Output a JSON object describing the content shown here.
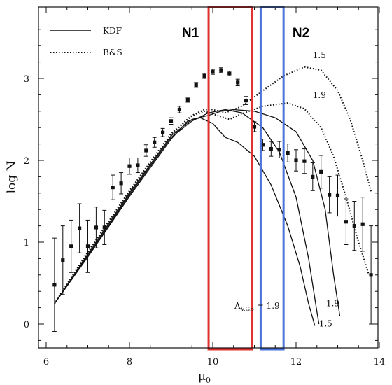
{
  "chart_data": {
    "type": "scatter",
    "xlabel": "μ",
    "xlabel_sub": "0",
    "ylabel": "log N",
    "xlim": [
      6,
      14
    ],
    "ylim": [
      -0.3,
      3.9
    ],
    "x_ticks": [
      6,
      8,
      10,
      12,
      14
    ],
    "y_ticks": [
      0,
      1,
      2,
      3
    ],
    "legend": [
      {
        "label": "KDF",
        "style": "solid"
      },
      {
        "label": "B&S",
        "style": "dotted"
      }
    ],
    "observed": [
      {
        "x": 6.2,
        "y": 0.48,
        "err": 0.57
      },
      {
        "x": 6.4,
        "y": 0.78,
        "err": 0.42
      },
      {
        "x": 6.6,
        "y": 0.95,
        "err": 0.32
      },
      {
        "x": 6.8,
        "y": 1.17,
        "err": 0.3
      },
      {
        "x": 7.0,
        "y": 0.95,
        "err": 0.32
      },
      {
        "x": 7.2,
        "y": 1.18,
        "err": 0.25
      },
      {
        "x": 7.4,
        "y": 1.18,
        "err": 0.21
      },
      {
        "x": 7.6,
        "y": 1.67,
        "err": 0.15
      },
      {
        "x": 7.8,
        "y": 1.72,
        "err": 0.13
      },
      {
        "x": 8.0,
        "y": 1.93,
        "err": 0.1
      },
      {
        "x": 8.2,
        "y": 1.94,
        "err": 0.09
      },
      {
        "x": 8.4,
        "y": 2.12,
        "err": 0.07
      },
      {
        "x": 8.6,
        "y": 2.22,
        "err": 0.06
      },
      {
        "x": 8.8,
        "y": 2.34,
        "err": 0.05
      },
      {
        "x": 9.0,
        "y": 2.48,
        "err": 0.04
      },
      {
        "x": 9.2,
        "y": 2.62,
        "err": 0.04
      },
      {
        "x": 9.4,
        "y": 2.74,
        "err": 0.03
      },
      {
        "x": 9.6,
        "y": 2.92,
        "err": 0.03
      },
      {
        "x": 9.8,
        "y": 3.03,
        "err": 0.03
      },
      {
        "x": 10.0,
        "y": 3.08,
        "err": 0.03
      },
      {
        "x": 10.2,
        "y": 3.1,
        "err": 0.03
      },
      {
        "x": 10.4,
        "y": 3.06,
        "err": 0.03
      },
      {
        "x": 10.6,
        "y": 2.95,
        "err": 0.04
      },
      {
        "x": 10.8,
        "y": 2.73,
        "err": 0.05
      },
      {
        "x": 11.0,
        "y": 2.41,
        "err": 0.06
      },
      {
        "x": 11.2,
        "y": 2.19,
        "err": 0.07
      },
      {
        "x": 11.4,
        "y": 2.14,
        "err": 0.09
      },
      {
        "x": 11.6,
        "y": 2.13,
        "err": 0.1
      },
      {
        "x": 11.8,
        "y": 2.09,
        "err": 0.11
      },
      {
        "x": 12.0,
        "y": 2.0,
        "err": 0.13
      },
      {
        "x": 12.2,
        "y": 1.99,
        "err": 0.15
      },
      {
        "x": 12.4,
        "y": 1.8,
        "err": 0.17
      },
      {
        "x": 12.6,
        "y": 1.86,
        "err": 0.2
      },
      {
        "x": 12.8,
        "y": 1.58,
        "err": 0.22
      },
      {
        "x": 13.0,
        "y": 1.57,
        "err": 0.25
      },
      {
        "x": 13.2,
        "y": 1.25,
        "err": 0.28
      },
      {
        "x": 13.4,
        "y": 1.2,
        "err": 0.3
      },
      {
        "x": 13.6,
        "y": 1.22,
        "err": 0.33
      },
      {
        "x": 13.8,
        "y": 0.6,
        "err": 0.6
      }
    ],
    "kdf_curves": [
      {
        "label": "",
        "points": [
          [
            6.2,
            0.25
          ],
          [
            7,
            0.85
          ],
          [
            8,
            1.6
          ],
          [
            9,
            2.3
          ],
          [
            9.5,
            2.5
          ],
          [
            9.9,
            2.55
          ],
          [
            10.2,
            2.6
          ],
          [
            10.5,
            2.62
          ],
          [
            11,
            2.6
          ],
          [
            11.5,
            2.52
          ],
          [
            12,
            2.35
          ],
          [
            12.4,
            2.0
          ],
          [
            12.7,
            1.4
          ],
          [
            12.9,
            0.6
          ],
          [
            13.05,
            0.1
          ]
        ]
      },
      {
        "label": "1.5",
        "points": [
          [
            6.2,
            0.25
          ],
          [
            7,
            0.83
          ],
          [
            8,
            1.58
          ],
          [
            9,
            2.28
          ],
          [
            9.5,
            2.48
          ],
          [
            9.9,
            2.58
          ],
          [
            10.3,
            2.62
          ],
          [
            10.7,
            2.58
          ],
          [
            11.2,
            2.4
          ],
          [
            11.6,
            2.1
          ],
          [
            12.0,
            1.55
          ],
          [
            12.3,
            0.8
          ],
          [
            12.5,
            0.15
          ],
          [
            12.55,
            0.0
          ]
        ]
      },
      {
        "label": "1.9",
        "points": [
          [
            6.2,
            0.25
          ],
          [
            7,
            0.82
          ],
          [
            8,
            1.56
          ],
          [
            9,
            2.26
          ],
          [
            9.4,
            2.48
          ],
          [
            9.7,
            2.52
          ],
          [
            10.0,
            2.45
          ],
          [
            10.3,
            2.28
          ],
          [
            10.6,
            2.22
          ],
          [
            11.0,
            2.05
          ],
          [
            11.4,
            1.7
          ],
          [
            11.8,
            1.2
          ],
          [
            12.1,
            0.7
          ],
          [
            12.3,
            0.25
          ],
          [
            12.45,
            -0.02
          ]
        ]
      }
    ],
    "bs_curves": [
      {
        "label": "1.5",
        "points": [
          [
            6.2,
            0.25
          ],
          [
            7,
            0.88
          ],
          [
            8,
            1.63
          ],
          [
            9,
            2.33
          ],
          [
            9.5,
            2.55
          ],
          [
            9.8,
            2.62
          ],
          [
            10.0,
            2.62
          ],
          [
            10.3,
            2.58
          ],
          [
            10.7,
            2.66
          ],
          [
            11.2,
            2.85
          ],
          [
            11.7,
            3.03
          ],
          [
            12.2,
            3.14
          ],
          [
            12.6,
            3.1
          ],
          [
            13.0,
            2.85
          ],
          [
            13.3,
            2.5
          ],
          [
            13.6,
            2.0
          ],
          [
            13.8,
            1.62
          ]
        ]
      },
      {
        "label": "1.9",
        "points": [
          [
            6.2,
            0.25
          ],
          [
            7,
            0.87
          ],
          [
            8,
            1.62
          ],
          [
            9,
            2.32
          ],
          [
            9.5,
            2.54
          ],
          [
            9.8,
            2.6
          ],
          [
            10.1,
            2.55
          ],
          [
            10.4,
            2.5
          ],
          [
            10.7,
            2.57
          ],
          [
            11.2,
            2.66
          ],
          [
            11.8,
            2.7
          ],
          [
            12.2,
            2.63
          ],
          [
            12.6,
            2.4
          ],
          [
            12.9,
            2.05
          ],
          [
            13.2,
            1.55
          ],
          [
            13.5,
            1.0
          ],
          [
            13.75,
            0.6
          ]
        ]
      }
    ],
    "annotation": {
      "prefix": "A",
      "subscript": "V,GB",
      "suffix": " = 1.9"
    },
    "bands": [
      {
        "label": "N1",
        "x0": 9.9,
        "x1": 10.95,
        "color": "#e03030"
      },
      {
        "label": "N2",
        "x0": 11.15,
        "x1": 11.7,
        "color": "#4a72d9"
      }
    ]
  }
}
